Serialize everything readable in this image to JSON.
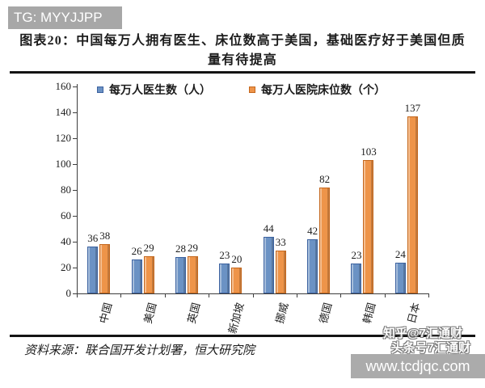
{
  "banner": {
    "text": "TG: MYYJJPP"
  },
  "title": {
    "line1": "图表20：中国每万人拥有医生、床位数高于美国，基础医疗好于美国但质",
    "line2": "量有待提高"
  },
  "chart_data": {
    "type": "bar",
    "categories": [
      "中国",
      "美国",
      "英国",
      "新加坡",
      "挪威",
      "德国",
      "韩国",
      "日本"
    ],
    "series": [
      {
        "name": "每万人医生数（人）",
        "color": "#6b92c4",
        "border": "#3c62a0",
        "values": [
          36,
          26,
          28,
          23,
          44,
          42,
          23,
          24
        ]
      },
      {
        "name": "每万人医院床位数（个）",
        "color": "#ee9449",
        "border": "#c4671d",
        "values": [
          38,
          29,
          29,
          20,
          33,
          82,
          103,
          137
        ]
      }
    ],
    "title": "中国每万人拥有医生、床位数高于美国，基础医疗好于美国但质量有待提高",
    "xlabel": "",
    "ylabel": "",
    "ylim": [
      0,
      160
    ],
    "ytick_step": 20,
    "grid": false,
    "legend_position": "top"
  },
  "source": {
    "text": "资料来源：联合国开发计划署，恒大研究院"
  },
  "watermark": {
    "line1": "知乎@7汇通财",
    "line2": "头条号7汇通财",
    "url": "www.tcdjqc.com"
  }
}
